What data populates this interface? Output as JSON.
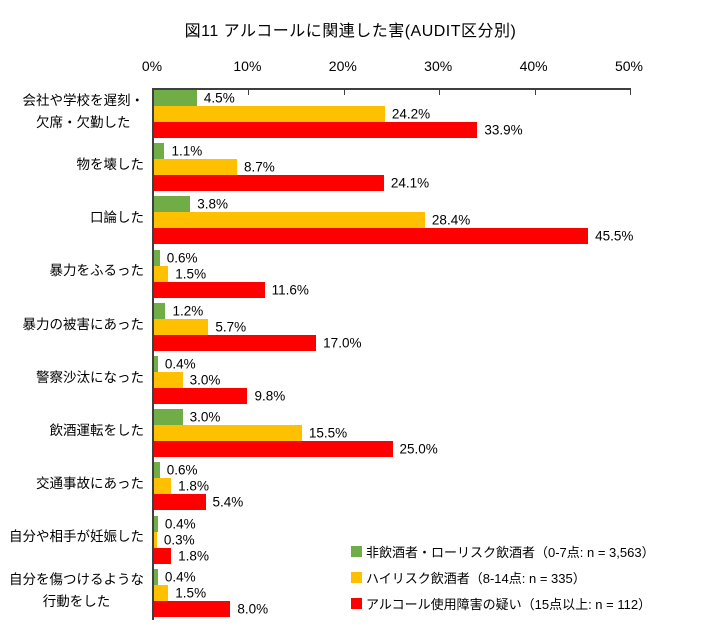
{
  "title": "図11  アルコールに関連した害(AUDIT区分別)",
  "chart_data": {
    "type": "bar",
    "orientation": "horizontal",
    "title": "図11  アルコールに関連した害(AUDIT区分別)",
    "categories": [
      "会社や学校を遅刻・\n欠席・欠勤した",
      "物を壊した",
      "口論した",
      "暴力をふるった",
      "暴力の被害にあった",
      "警察沙汰になった",
      "飲酒運転をした",
      "交通事故にあった",
      "自分や相手が妊娠した",
      "自分を傷つけるような\n行動をした"
    ],
    "series": [
      {
        "name": "非飲酒者・ローリスク飲酒者（0-7点: n = 3,563）",
        "color": "#70AD47",
        "values": [
          4.5,
          1.1,
          3.8,
          0.6,
          1.2,
          0.4,
          3.0,
          0.6,
          0.4,
          0.4
        ]
      },
      {
        "name": "ハイリスク飲酒者（8-14点: n = 335）",
        "color": "#FFC000",
        "values": [
          24.2,
          8.7,
          28.4,
          1.5,
          5.7,
          3.0,
          15.5,
          1.8,
          0.3,
          1.5
        ]
      },
      {
        "name": "アルコール使用障害の疑い（15点以上: n = 112）",
        "color": "#FF0000",
        "values": [
          33.9,
          24.1,
          45.5,
          11.6,
          17.0,
          9.8,
          25.0,
          5.4,
          1.8,
          8.0
        ]
      }
    ],
    "x_ticks": [
      "0%",
      "10%",
      "20%",
      "30%",
      "40%",
      "50%"
    ],
    "xlim": [
      0,
      50
    ],
    "value_suffix": "%",
    "grid": false,
    "legend_position": "bottom-right",
    "axis_color": "#3f3f3f"
  }
}
